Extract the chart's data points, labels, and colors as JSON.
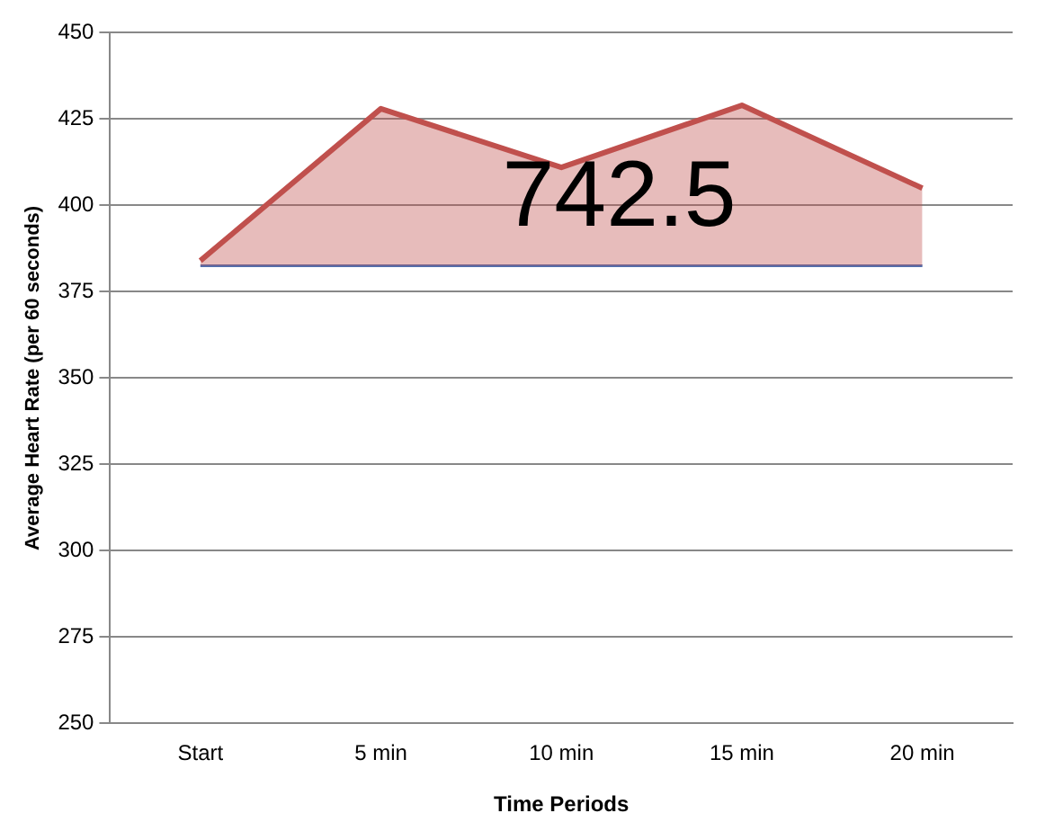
{
  "chart_data": {
    "type": "area",
    "xlabel": "Time Periods",
    "ylabel": "Average Heart Rate (per 60 seconds)",
    "categories": [
      "Start",
      "5 min",
      "10 min",
      "15 min",
      "20 min"
    ],
    "series": [
      {
        "type": "line",
        "color": "#4f6fb0",
        "values": [
          382.5,
          382.5,
          382.5,
          382.5,
          382.5
        ]
      },
      {
        "color": "#c0504d",
        "values": [
          384,
          428,
          411,
          429,
          405
        ]
      }
    ],
    "ylim": [
      250,
      450
    ],
    "yticks": [
      250,
      275,
      300,
      325,
      350,
      375,
      400,
      425,
      450
    ],
    "grid": "y",
    "legend": false,
    "annotations": [
      "742.5"
    ]
  }
}
